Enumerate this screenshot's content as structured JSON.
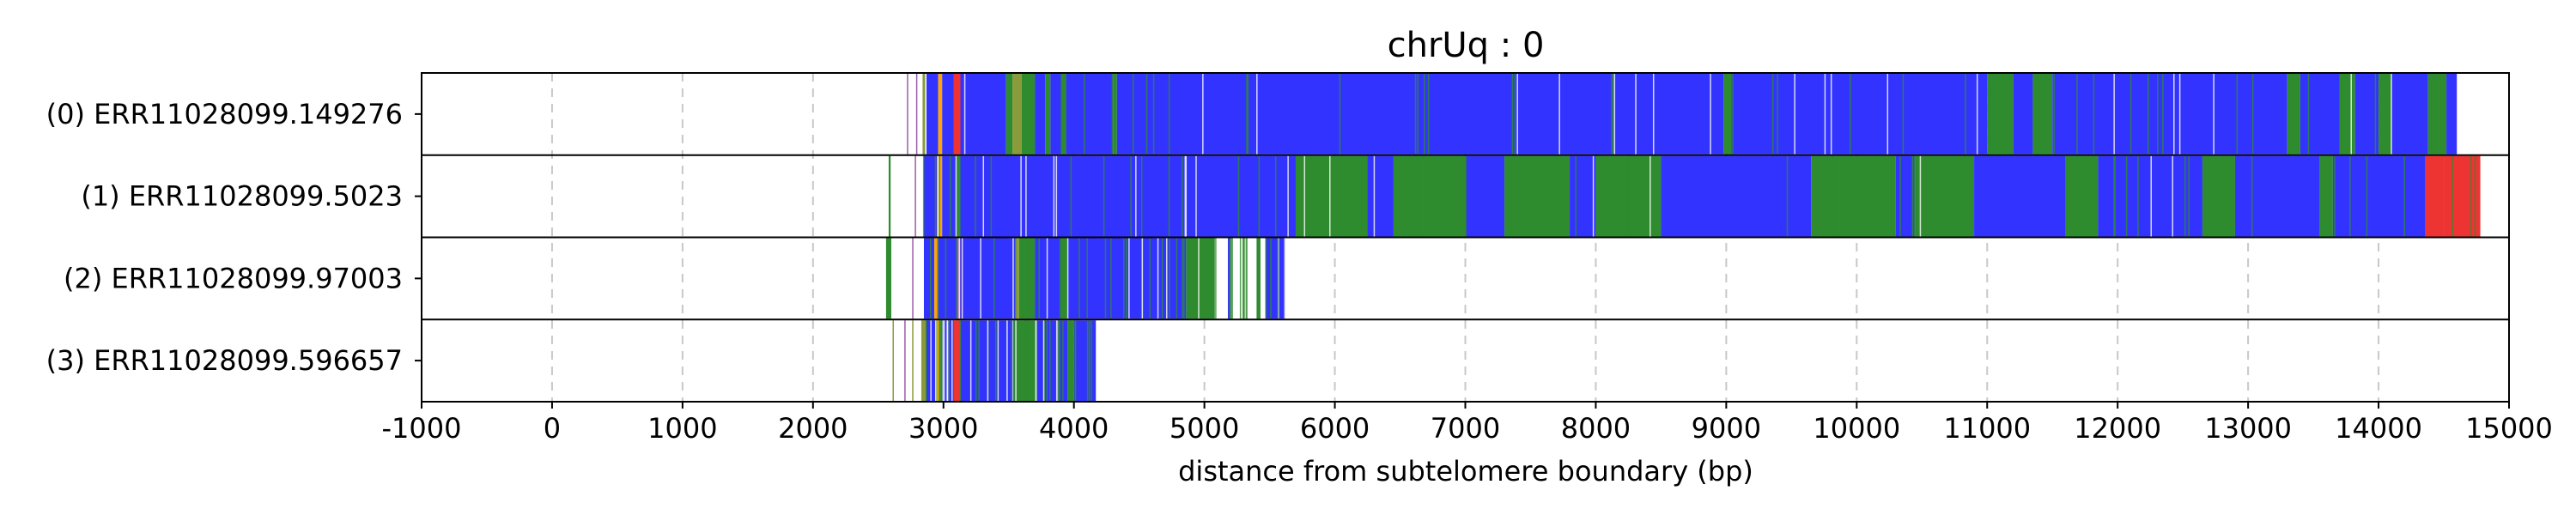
{
  "chart_data": {
    "type": "bar",
    "title": "chrUq : 0",
    "xlabel": "distance from subtelomere boundary (bp)",
    "ylabel": "",
    "xlim": [
      -1000,
      15000
    ],
    "xticks": [
      -1000,
      0,
      1000,
      2000,
      3000,
      4000,
      5000,
      6000,
      7000,
      8000,
      9000,
      10000,
      11000,
      12000,
      13000,
      14000,
      15000
    ],
    "xtick_labels": [
      "-1000",
      "0",
      "1000",
      "2000",
      "3000",
      "4000",
      "5000",
      "6000",
      "7000",
      "8000",
      "9000",
      "10000",
      "11000",
      "12000",
      "13000",
      "14000",
      "15000"
    ],
    "grid": "vertical dashed",
    "colors": {
      "blue": "#3333ff",
      "green": "#2e8b2e",
      "red": "#ee3333",
      "orange": "#ffa500",
      "purple": "#9b5fa8",
      "olive": "#8b9b3a",
      "white": "#ffffff"
    },
    "reads": [
      {
        "label": "(0) ERR11028099.149276",
        "start": 2720,
        "end": 14600,
        "segments": [
          {
            "x0": 2720,
            "x1": 2730,
            "c": "purple"
          },
          {
            "x0": 2790,
            "x1": 2800,
            "c": "purple"
          },
          {
            "x0": 2840,
            "x1": 2860,
            "c": "olive"
          },
          {
            "x0": 2870,
            "x1": 2960,
            "c": "blue"
          },
          {
            "x0": 2960,
            "x1": 2990,
            "c": "orange"
          },
          {
            "x0": 2990,
            "x1": 3080,
            "c": "blue"
          },
          {
            "x0": 3080,
            "x1": 3130,
            "c": "red"
          },
          {
            "x0": 3130,
            "x1": 3480,
            "c": "blue"
          },
          {
            "x0": 3480,
            "x1": 3530,
            "c": "green"
          },
          {
            "x0": 3530,
            "x1": 3600,
            "c": "olive"
          },
          {
            "x0": 3600,
            "x1": 3700,
            "c": "green"
          },
          {
            "x0": 3700,
            "x1": 3780,
            "c": "blue"
          },
          {
            "x0": 3780,
            "x1": 3820,
            "c": "green"
          },
          {
            "x0": 3820,
            "x1": 3900,
            "c": "blue"
          },
          {
            "x0": 3900,
            "x1": 3940,
            "c": "green"
          },
          {
            "x0": 3940,
            "x1": 4300,
            "c": "blue"
          },
          {
            "x0": 4300,
            "x1": 4330,
            "c": "green"
          },
          {
            "x0": 4330,
            "x1": 8980,
            "c": "blue"
          },
          {
            "x0": 8980,
            "x1": 9040,
            "c": "green"
          },
          {
            "x0": 9040,
            "x1": 11000,
            "c": "blue"
          },
          {
            "x0": 11000,
            "x1": 11200,
            "c": "green"
          },
          {
            "x0": 11200,
            "x1": 11350,
            "c": "blue"
          },
          {
            "x0": 11350,
            "x1": 11500,
            "c": "green"
          },
          {
            "x0": 11500,
            "x1": 13300,
            "c": "blue"
          },
          {
            "x0": 13300,
            "x1": 13400,
            "c": "green"
          },
          {
            "x0": 13400,
            "x1": 13700,
            "c": "blue"
          },
          {
            "x0": 13700,
            "x1": 13820,
            "c": "green"
          },
          {
            "x0": 13820,
            "x1": 14000,
            "c": "blue"
          },
          {
            "x0": 14000,
            "x1": 14100,
            "c": "green"
          },
          {
            "x0": 14100,
            "x1": 14380,
            "c": "blue"
          },
          {
            "x0": 14380,
            "x1": 14520,
            "c": "green"
          },
          {
            "x0": 14520,
            "x1": 14600,
            "c": "blue"
          }
        ]
      },
      {
        "label": "(1) ERR11028099.5023",
        "start": 2580,
        "end": 14780,
        "segments": [
          {
            "x0": 2580,
            "x1": 2595,
            "c": "green"
          },
          {
            "x0": 2780,
            "x1": 2790,
            "c": "purple"
          },
          {
            "x0": 2850,
            "x1": 2950,
            "c": "blue"
          },
          {
            "x0": 2950,
            "x1": 2990,
            "c": "orange"
          },
          {
            "x0": 2990,
            "x1": 3100,
            "c": "blue"
          },
          {
            "x0": 3100,
            "x1": 3130,
            "c": "green"
          },
          {
            "x0": 3130,
            "x1": 5700,
            "c": "blue"
          },
          {
            "x0": 5700,
            "x1": 6250,
            "c": "green"
          },
          {
            "x0": 6250,
            "x1": 6450,
            "c": "blue"
          },
          {
            "x0": 6450,
            "x1": 7000,
            "c": "green"
          },
          {
            "x0": 7000,
            "x1": 7300,
            "c": "blue"
          },
          {
            "x0": 7300,
            "x1": 7800,
            "c": "green"
          },
          {
            "x0": 7800,
            "x1": 8000,
            "c": "blue"
          },
          {
            "x0": 8000,
            "x1": 8500,
            "c": "green"
          },
          {
            "x0": 8500,
            "x1": 9650,
            "c": "blue"
          },
          {
            "x0": 9650,
            "x1": 10300,
            "c": "green"
          },
          {
            "x0": 10300,
            "x1": 10450,
            "c": "blue"
          },
          {
            "x0": 10450,
            "x1": 10900,
            "c": "green"
          },
          {
            "x0": 10900,
            "x1": 11600,
            "c": "blue"
          },
          {
            "x0": 11600,
            "x1": 11850,
            "c": "green"
          },
          {
            "x0": 11850,
            "x1": 12650,
            "c": "blue"
          },
          {
            "x0": 12650,
            "x1": 12900,
            "c": "green"
          },
          {
            "x0": 12900,
            "x1": 13550,
            "c": "blue"
          },
          {
            "x0": 13550,
            "x1": 13650,
            "c": "green"
          },
          {
            "x0": 13650,
            "x1": 14360,
            "c": "blue"
          },
          {
            "x0": 14360,
            "x1": 14500,
            "c": "red"
          },
          {
            "x0": 14500,
            "x1": 14780,
            "c": "red"
          }
        ]
      },
      {
        "label": "(2) ERR11028099.97003",
        "start": 2560,
        "end": 5620,
        "segments": [
          {
            "x0": 2560,
            "x1": 2600,
            "c": "green"
          },
          {
            "x0": 2760,
            "x1": 2770,
            "c": "purple"
          },
          {
            "x0": 2850,
            "x1": 2930,
            "c": "blue"
          },
          {
            "x0": 2930,
            "x1": 2960,
            "c": "orange"
          },
          {
            "x0": 2960,
            "x1": 3100,
            "c": "blue"
          },
          {
            "x0": 3100,
            "x1": 3130,
            "c": "purple"
          },
          {
            "x0": 3130,
            "x1": 3550,
            "c": "blue"
          },
          {
            "x0": 3550,
            "x1": 3580,
            "c": "olive"
          },
          {
            "x0": 3580,
            "x1": 3700,
            "c": "green"
          },
          {
            "x0": 3700,
            "x1": 3900,
            "c": "blue"
          },
          {
            "x0": 3900,
            "x1": 3950,
            "c": "green"
          },
          {
            "x0": 3950,
            "x1": 4860,
            "c": "blue"
          },
          {
            "x0": 4860,
            "x1": 5080,
            "c": "green"
          },
          {
            "x0": 5180,
            "x1": 5200,
            "c": "blue"
          },
          {
            "x0": 5300,
            "x1": 5330,
            "c": "green"
          },
          {
            "x0": 5400,
            "x1": 5430,
            "c": "green"
          },
          {
            "x0": 5470,
            "x1": 5620,
            "c": "blue"
          }
        ]
      },
      {
        "label": "(3) ERR11028099.596657",
        "start": 2610,
        "end": 4170,
        "segments": [
          {
            "x0": 2610,
            "x1": 2620,
            "c": "olive"
          },
          {
            "x0": 2700,
            "x1": 2710,
            "c": "purple"
          },
          {
            "x0": 2760,
            "x1": 2770,
            "c": "olive"
          },
          {
            "x0": 2830,
            "x1": 2870,
            "c": "olive"
          },
          {
            "x0": 2870,
            "x1": 2940,
            "c": "blue"
          },
          {
            "x0": 2940,
            "x1": 2980,
            "c": "orange"
          },
          {
            "x0": 2980,
            "x1": 3080,
            "c": "blue"
          },
          {
            "x0": 3080,
            "x1": 3130,
            "c": "red"
          },
          {
            "x0": 3130,
            "x1": 3550,
            "c": "blue"
          },
          {
            "x0": 3550,
            "x1": 3700,
            "c": "green"
          },
          {
            "x0": 3700,
            "x1": 3950,
            "c": "blue"
          },
          {
            "x0": 3950,
            "x1": 4000,
            "c": "green"
          },
          {
            "x0": 4000,
            "x1": 4170,
            "c": "blue"
          }
        ]
      }
    ]
  }
}
